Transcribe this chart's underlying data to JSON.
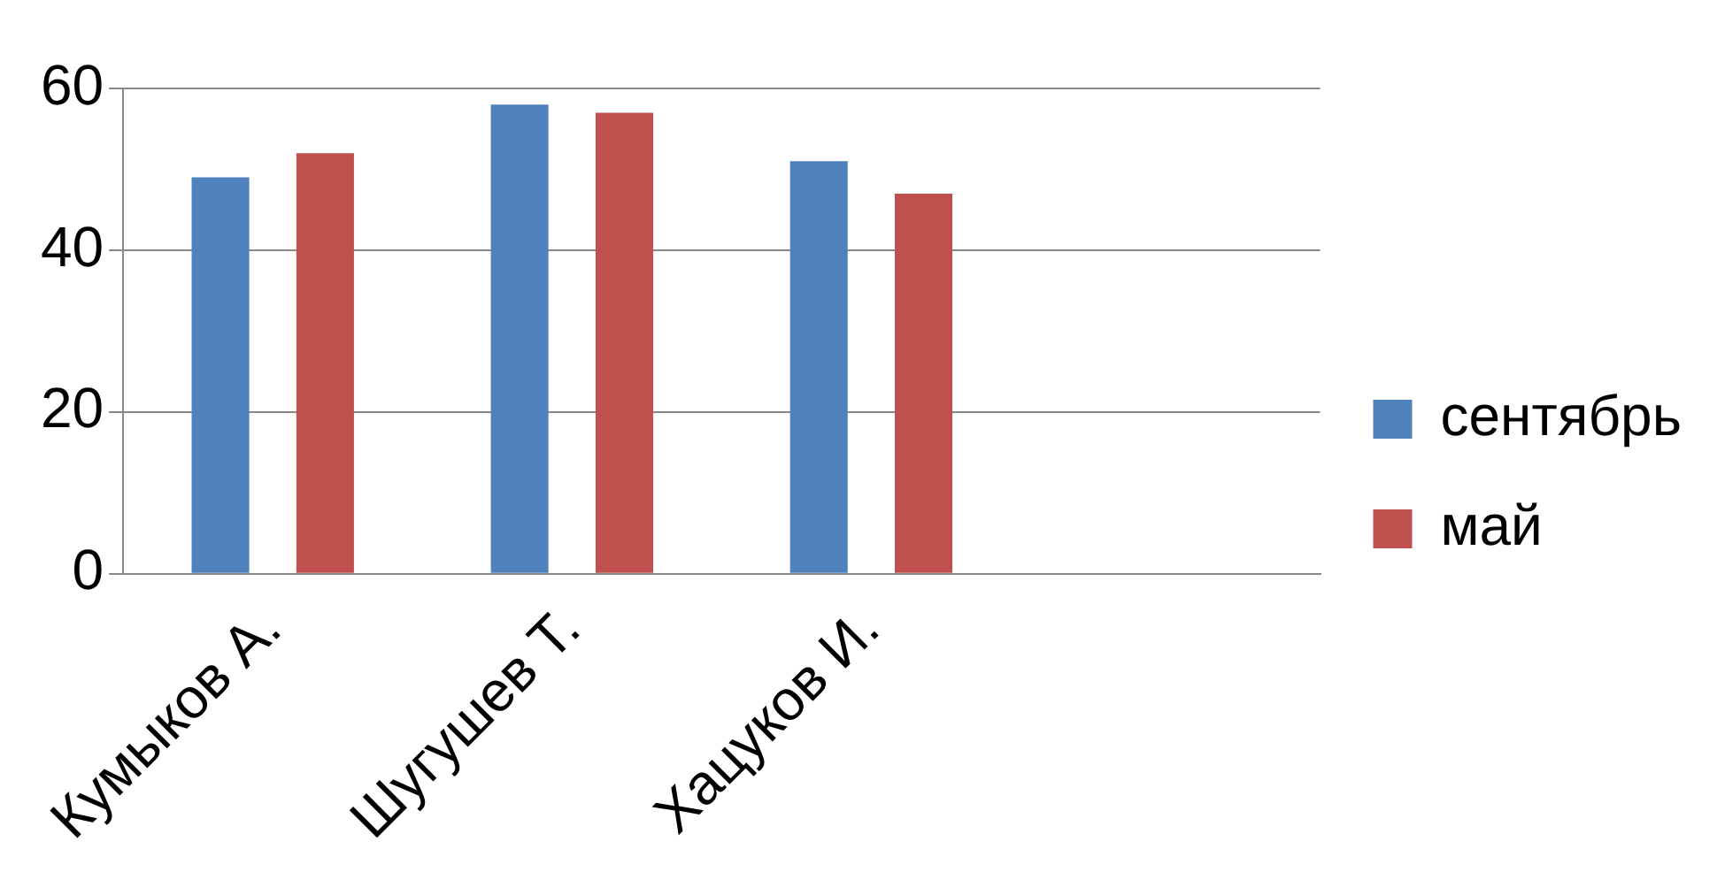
{
  "chart_data": {
    "type": "bar",
    "categories": [
      "Кумыков А.",
      "Шугушев Т.",
      "Хацуков И.",
      null
    ],
    "series": [
      {
        "name": "сентябрь",
        "color": "#4f81bd",
        "values": [
          49,
          58,
          51,
          null
        ]
      },
      {
        "name": "май",
        "color": "#c0504d",
        "values": [
          52,
          57,
          47,
          null
        ]
      }
    ],
    "ylim": [
      0,
      60
    ],
    "yticks": [
      0,
      20,
      40,
      60
    ],
    "grid": "y",
    "legend": "right"
  }
}
